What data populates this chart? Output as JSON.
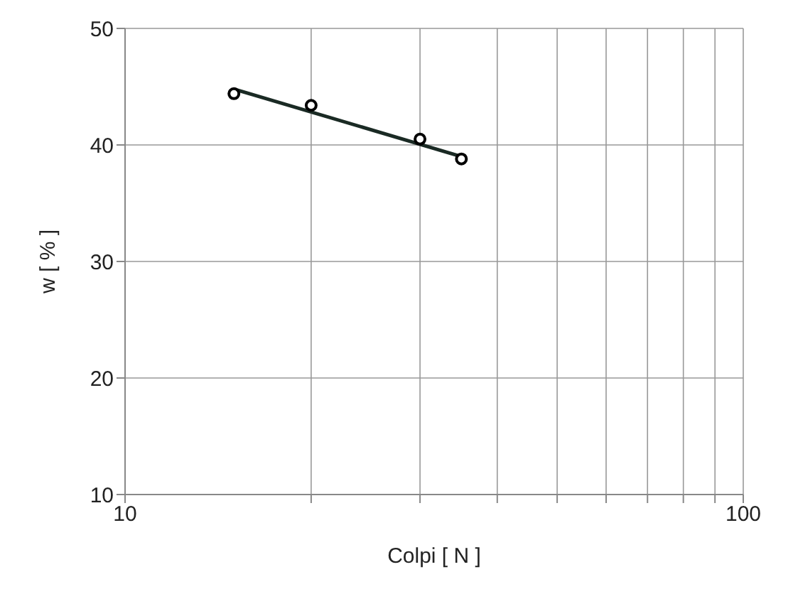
{
  "chart_data": {
    "type": "scatter",
    "xlabel": "Colpi [ N ]",
    "ylabel": "w  [ % ]",
    "log": "x",
    "grid": true,
    "xlim": [
      10,
      100
    ],
    "xticks": [
      10,
      {
        "value": 20,
        "label": null
      },
      {
        "value": 30,
        "label": null
      },
      {
        "value": 40,
        "label": null
      },
      {
        "value": 50,
        "label": null
      },
      {
        "value": 60,
        "label": null
      },
      {
        "value": 70,
        "label": null
      },
      {
        "value": 80,
        "label": null
      },
      {
        "value": 90,
        "label": null
      },
      100
    ],
    "ylim": [
      10,
      50
    ],
    "yticks": [
      10,
      20,
      30,
      40,
      50
    ],
    "series": [
      {
        "color": "#000000",
        "marker": "circle",
        "x": [
          15,
          20,
          30,
          35
        ],
        "values": [
          44.4,
          43.4,
          40.5,
          38.8
        ]
      },
      {
        "type": "line",
        "color": "#1a2a24",
        "marker": "none",
        "line_style": "solid",
        "x": [
          15,
          35
        ],
        "values": [
          44.8,
          39.0
        ]
      }
    ]
  }
}
